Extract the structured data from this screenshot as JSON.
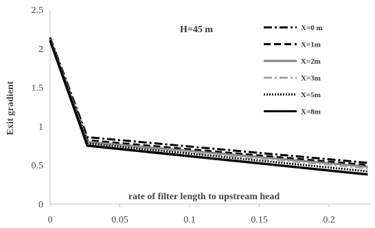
{
  "chart_data": {
    "type": "line",
    "annotation": "H=45 m",
    "xlabel": "rate of filter length to upstream head",
    "ylabel": "Exit gradient",
    "xlim": [
      0,
      0.23
    ],
    "ylim": [
      0,
      2.5
    ],
    "xticks": [
      "0",
      "0.05",
      "0.1",
      "0.15",
      "0.2"
    ],
    "yticks": [
      "0",
      "0.5",
      "1",
      "1.5",
      "2",
      "2.5"
    ],
    "grid": false,
    "legend_position": "top-right",
    "series": [
      {
        "name": "X=0 m",
        "color": "#000000",
        "style": "dashdot",
        "x": [
          0,
          0.0267,
          0.2278
        ],
        "y": [
          2.14,
          0.86,
          0.53
        ]
      },
      {
        "name": "X=1m",
        "color": "#000000",
        "style": "dashed",
        "x": [
          0,
          0.0267,
          0.2278
        ],
        "y": [
          2.13,
          0.82,
          0.5
        ]
      },
      {
        "name": "X=2m",
        "color": "#7f7f7f",
        "style": "solid",
        "x": [
          0,
          0.0267,
          0.2278
        ],
        "y": [
          2.12,
          0.8,
          0.48
        ]
      },
      {
        "name": "X=3m",
        "color": "#a6a6a6",
        "style": "dashdot",
        "x": [
          0,
          0.0267,
          0.2278
        ],
        "y": [
          2.12,
          0.79,
          0.46
        ]
      },
      {
        "name": "X=5m",
        "color": "#000000",
        "style": "dotted",
        "x": [
          0,
          0.0267,
          0.2278
        ],
        "y": [
          2.11,
          0.78,
          0.42
        ]
      },
      {
        "name": "X=8m",
        "color": "#000000",
        "style": "solid",
        "x": [
          0,
          0.0267,
          0.2278
        ],
        "y": [
          2.1,
          0.75,
          0.38
        ]
      }
    ]
  }
}
